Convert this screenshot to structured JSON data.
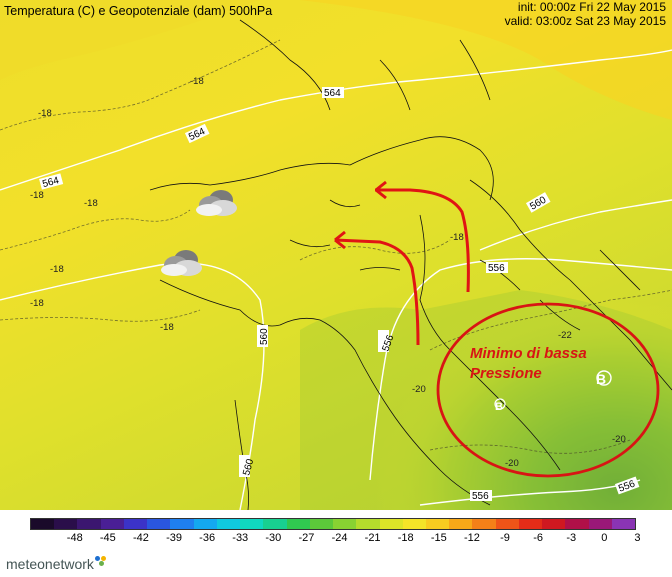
{
  "header": {
    "title": "Temperatura (C) e Geopotenziale (dam) 500hPa",
    "init": "init: 00:00z Fri 22 May 2015",
    "valid": "valid: 03:00z Sat 23 May 2015"
  },
  "annotation": {
    "line1": "Minimo di bassa",
    "line2": "Pressione",
    "color": "#d81414"
  },
  "geopotential_labels": [
    "564",
    "564",
    "564",
    "560",
    "560",
    "560",
    "556",
    "556",
    "556",
    "556"
  ],
  "temperature_labels": [
    "-18",
    "-18",
    "-18",
    "-18",
    "-18",
    "-18",
    "-18",
    "-18",
    "-20",
    "-20",
    "-20",
    "-22"
  ],
  "pressure_center_label": "B",
  "colorbar": {
    "ticks": [
      "-48",
      "-45",
      "-42",
      "-39",
      "-36",
      "-33",
      "-30",
      "-27",
      "-24",
      "-21",
      "-18",
      "-15",
      "-12",
      "-9",
      "-6",
      "-3",
      "0",
      "3"
    ],
    "colors": [
      "#1a0a2a",
      "#2a0e4a",
      "#3b1670",
      "#4a1f96",
      "#3b33c8",
      "#2a56e0",
      "#1f7ff0",
      "#14a8f0",
      "#10c8e0",
      "#10d8c0",
      "#18d090",
      "#30c850",
      "#5cc83a",
      "#88d232",
      "#b4dc2c",
      "#dce428",
      "#f4e428",
      "#f8cc20",
      "#f8a818",
      "#f48018",
      "#ee5418",
      "#e42c18",
      "#d01820",
      "#b01048",
      "#9a1878",
      "#8a34b4"
    ]
  },
  "logo": {
    "text": "meteonetwork",
    "dot_colors": [
      "#1e6fd0",
      "#f4b400",
      "#6ab04c"
    ]
  },
  "weather_icons": [
    "cloud-icon",
    "cloud-icon"
  ]
}
